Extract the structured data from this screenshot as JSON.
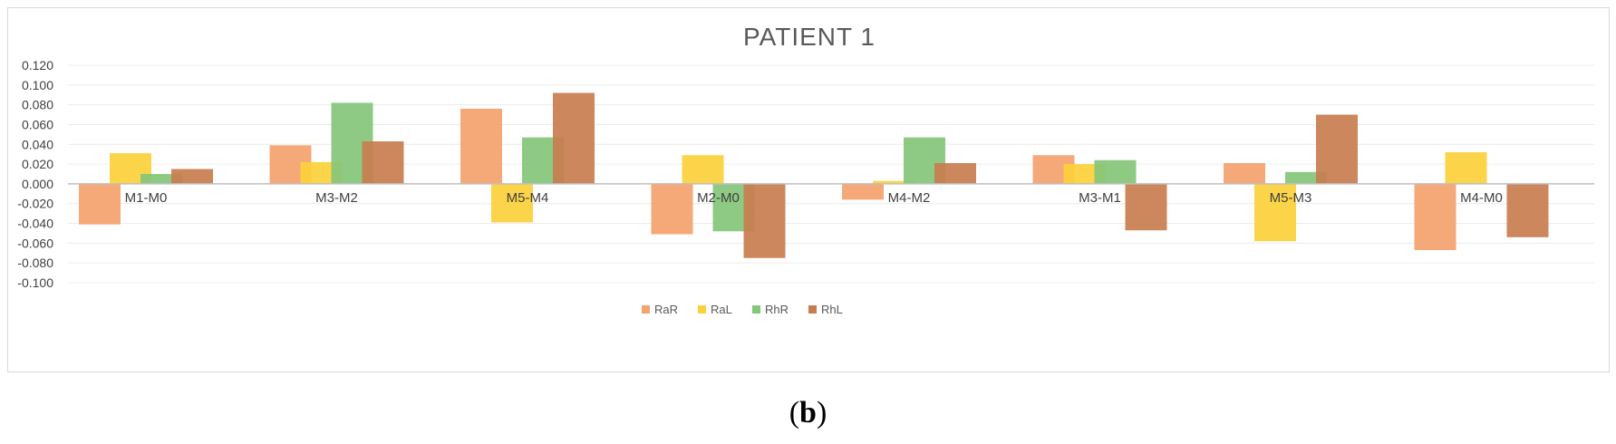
{
  "chart_data": {
    "type": "bar",
    "title": "PATIENT 1",
    "categories": [
      "M1-M0",
      "M3-M2",
      "M5-M4",
      "M2-M0",
      "M4-M2",
      "M3-M1",
      "M5-M3",
      "M4-M0"
    ],
    "series": [
      {
        "name": "RaR",
        "color": "#f4a26e",
        "values": [
          -0.041,
          0.039,
          0.076,
          -0.051,
          -0.016,
          0.029,
          0.021,
          -0.067
        ]
      },
      {
        "name": "RaL",
        "color": "#fcd03a",
        "values": [
          0.031,
          0.022,
          -0.039,
          0.029,
          0.003,
          0.02,
          -0.058,
          0.032
        ]
      },
      {
        "name": "RhR",
        "color": "#85c67a",
        "values": [
          0.01,
          0.082,
          0.047,
          -0.048,
          0.047,
          0.024,
          0.012,
          0.0
        ]
      },
      {
        "name": "RhL",
        "color": "#c87d4e",
        "values": [
          0.015,
          0.043,
          0.092,
          -0.075,
          0.021,
          -0.047,
          0.07,
          -0.054
        ]
      }
    ],
    "yticks": [
      "0.120",
      "0.100",
      "0.080",
      "0.060",
      "0.040",
      "0.020",
      "0.000",
      "-0.020",
      "-0.040",
      "-0.060",
      "-0.080",
      "-0.100"
    ],
    "ylim": [
      -0.1,
      0.12
    ],
    "legend_position": "bottom",
    "grid": true
  },
  "caption": {
    "open": "(",
    "label": "b",
    "close": ")"
  }
}
